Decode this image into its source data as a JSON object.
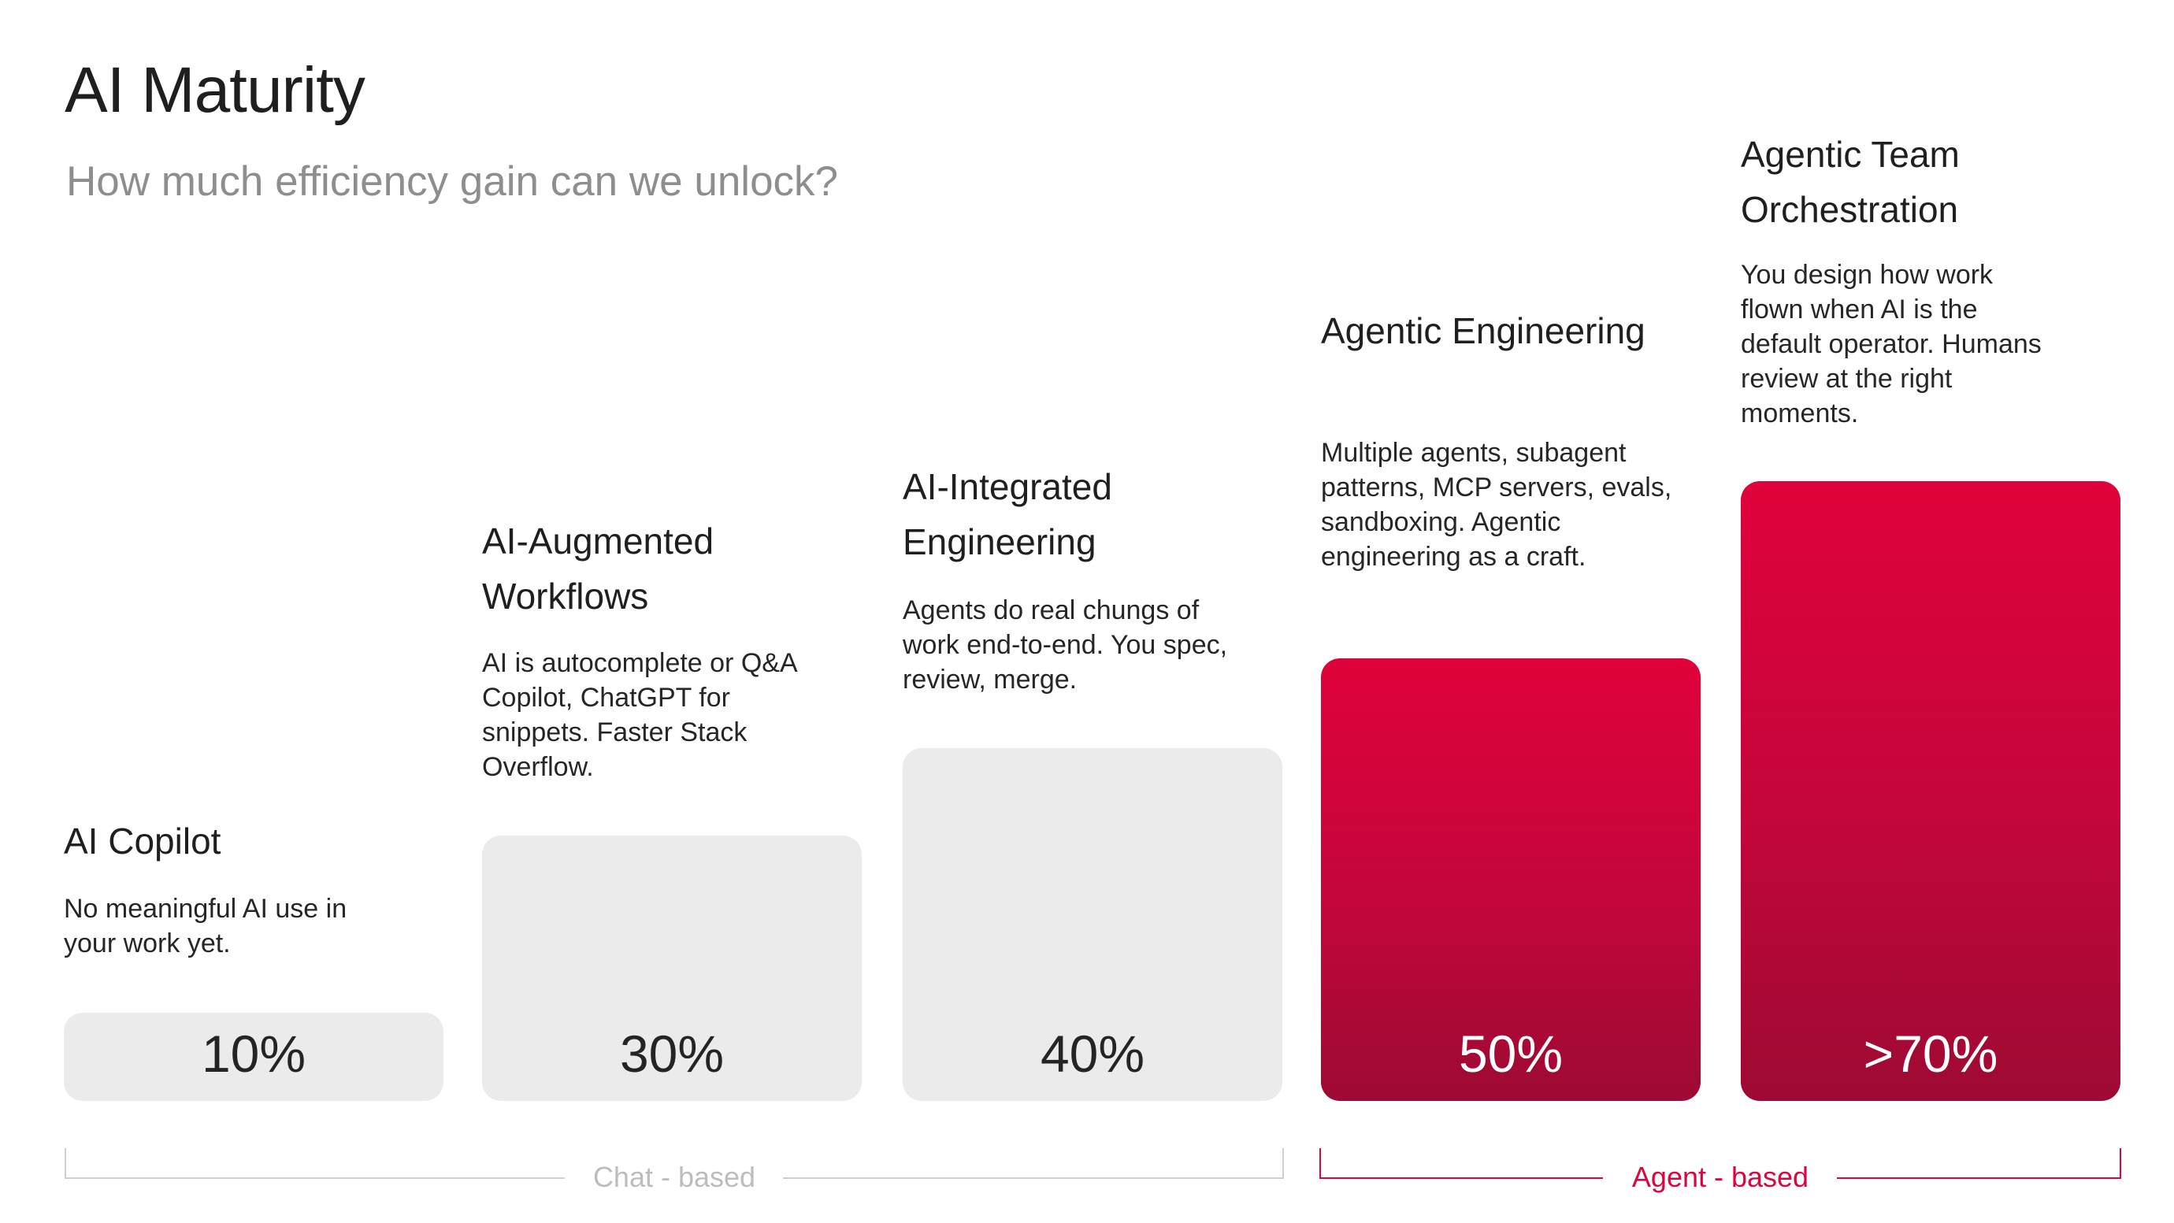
{
  "header": {
    "title": "AI Maturity",
    "subtitle": "How much efficiency gain can we unlock?"
  },
  "colors": {
    "chat_bar": "#ebebeb",
    "agent_bar_top": "#e0023b",
    "agent_bar_bottom": "#9d0a33",
    "chat_group": "#bdbdbd",
    "agent_group": "#d9063f"
  },
  "stages": [
    {
      "name": "AI Copilot",
      "description": "No meaningful AI use in your work yet.",
      "value_label": "10%",
      "group": "chat"
    },
    {
      "name": "AI-Augmented Workflows",
      "description": "AI is autocomplete or Q&A Copilot, ChatGPT for snippets. Faster Stack Overflow.",
      "value_label": "30%",
      "group": "chat"
    },
    {
      "name": "AI-Integrated Engineering",
      "description": "Agents do real chungs of work end-to-end. You spec, review, merge.",
      "value_label": "40%",
      "group": "chat"
    },
    {
      "name": "Agentic Engineering",
      "description": "Multiple agents, subagent patterns, MCP servers, evals, sandboxing. Agentic engineering as a craft.",
      "value_label": "50%",
      "group": "agent"
    },
    {
      "name": "Agentic Team Orchestration",
      "description": "You design how work flown when AI is the default operator. Humans review at the right moments.",
      "value_label": ">70%",
      "group": "agent"
    }
  ],
  "groups": {
    "chat": {
      "label": "Chat - based"
    },
    "agent": {
      "label": "Agent - based"
    }
  },
  "chart_data": {
    "type": "bar",
    "title": "AI Maturity",
    "subtitle": "How much efficiency gain can we unlock?",
    "categories": [
      "AI Copilot",
      "AI-Augmented Workflows",
      "AI-Integrated Engineering",
      "Agentic Engineering",
      "Agentic Team Orchestration"
    ],
    "values": [
      10,
      30,
      40,
      50,
      70
    ],
    "value_labels": [
      "10%",
      "30%",
      "40%",
      "50%",
      ">70%"
    ],
    "groups": [
      {
        "name": "Chat - based",
        "categories": [
          "AI Copilot",
          "AI-Augmented Workflows",
          "AI-Integrated Engineering"
        ]
      },
      {
        "name": "Agent - based",
        "categories": [
          "Agentic Engineering",
          "Agentic Team Orchestration"
        ]
      }
    ],
    "xlabel": "",
    "ylabel": "",
    "grid": false,
    "legend": "bottom"
  }
}
